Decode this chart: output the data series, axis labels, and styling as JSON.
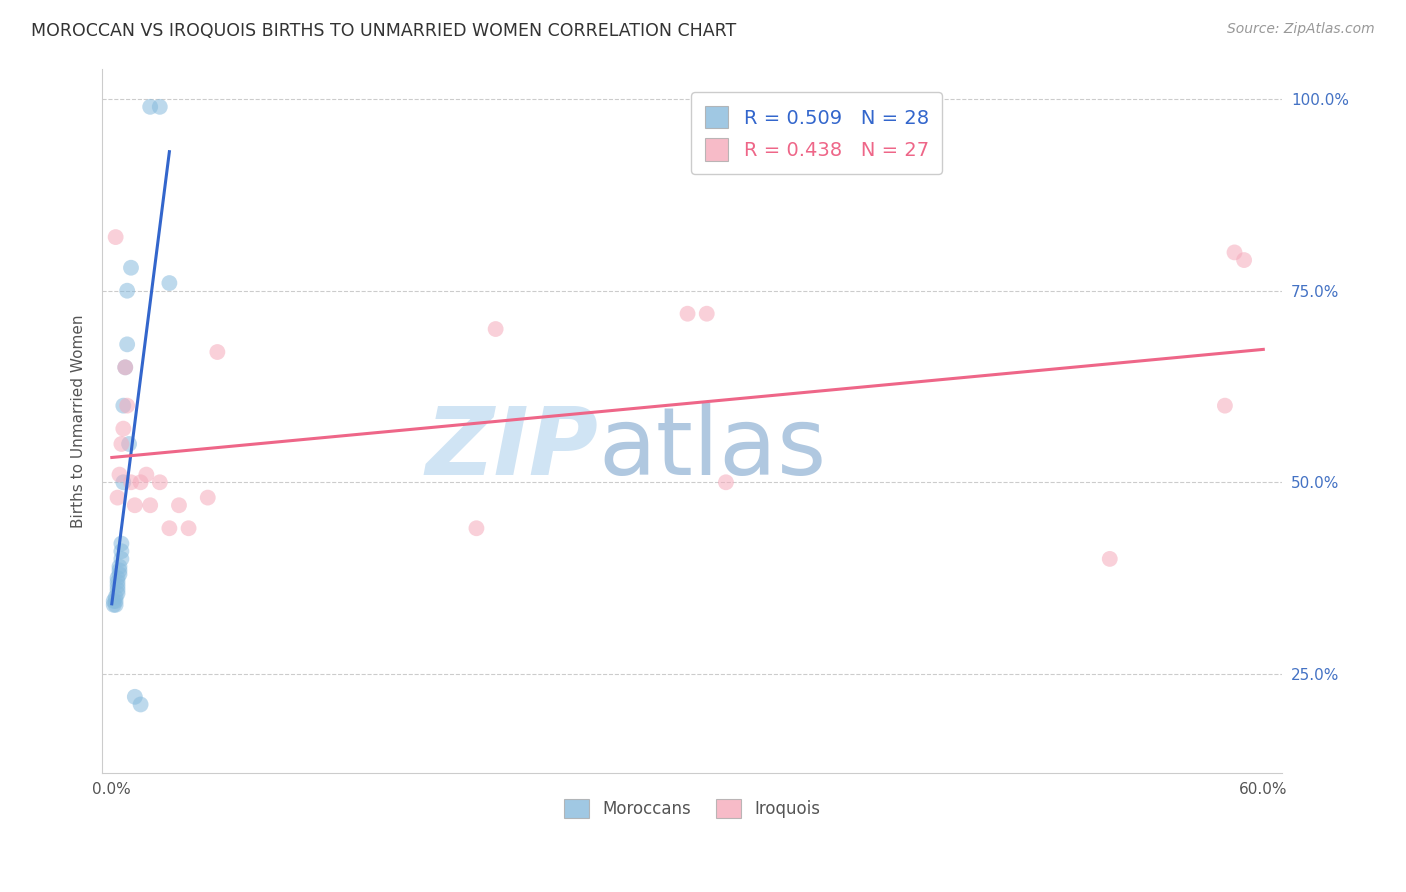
{
  "title": "MOROCCAN VS IROQUOIS BIRTHS TO UNMARRIED WOMEN CORRELATION CHART",
  "source": "Source: ZipAtlas.com",
  "ylabel": "Births to Unmarried Women",
  "moroccan_R": 0.509,
  "moroccan_N": 28,
  "iroquois_R": 0.438,
  "iroquois_N": 27,
  "moroccan_color": "#88bbdd",
  "iroquois_color": "#f5aabb",
  "moroccan_line_color": "#3366cc",
  "iroquois_line_color": "#ee6688",
  "watermark_zip": "ZIP",
  "watermark_atlas": "atlas",
  "watermark_color_zip": "#d0e4f4",
  "watermark_color_atlas": "#b0c8e0",
  "ytick_color": "#4472c4",
  "xlim": [
    0.0,
    0.6
  ],
  "ylim": [
    0.12,
    1.04
  ],
  "yticks": [
    0.25,
    0.5,
    0.75,
    1.0
  ],
  "ytick_labels": [
    "25.0%",
    "50.0%",
    "75.0%",
    "100.0%"
  ],
  "xticks": [
    0.0,
    0.6
  ],
  "xtick_labels": [
    "0.0%",
    "60.0%"
  ],
  "moroccan_x": [
    0.001,
    0.001,
    0.002,
    0.002,
    0.002,
    0.003,
    0.003,
    0.003,
    0.003,
    0.003,
    0.004,
    0.004,
    0.004,
    0.005,
    0.005,
    0.005,
    0.006,
    0.006,
    0.007,
    0.008,
    0.008,
    0.009,
    0.01,
    0.012,
    0.015,
    0.02,
    0.025,
    0.03
  ],
  "moroccan_y": [
    0.34,
    0.345,
    0.34,
    0.345,
    0.35,
    0.355,
    0.36,
    0.365,
    0.37,
    0.375,
    0.38,
    0.385,
    0.39,
    0.4,
    0.41,
    0.42,
    0.5,
    0.6,
    0.65,
    0.68,
    0.75,
    0.55,
    0.78,
    0.22,
    0.21,
    0.99,
    0.99,
    0.76
  ],
  "iroquois_x": [
    0.002,
    0.003,
    0.004,
    0.005,
    0.006,
    0.007,
    0.008,
    0.01,
    0.012,
    0.015,
    0.018,
    0.02,
    0.025,
    0.03,
    0.035,
    0.04,
    0.05,
    0.055,
    0.19,
    0.2,
    0.3,
    0.31,
    0.32,
    0.52,
    0.58,
    0.585,
    0.59
  ],
  "iroquois_y": [
    0.82,
    0.48,
    0.51,
    0.55,
    0.57,
    0.65,
    0.6,
    0.5,
    0.47,
    0.5,
    0.51,
    0.47,
    0.5,
    0.44,
    0.47,
    0.44,
    0.48,
    0.67,
    0.44,
    0.7,
    0.72,
    0.72,
    0.5,
    0.4,
    0.6,
    0.8,
    0.79
  ]
}
